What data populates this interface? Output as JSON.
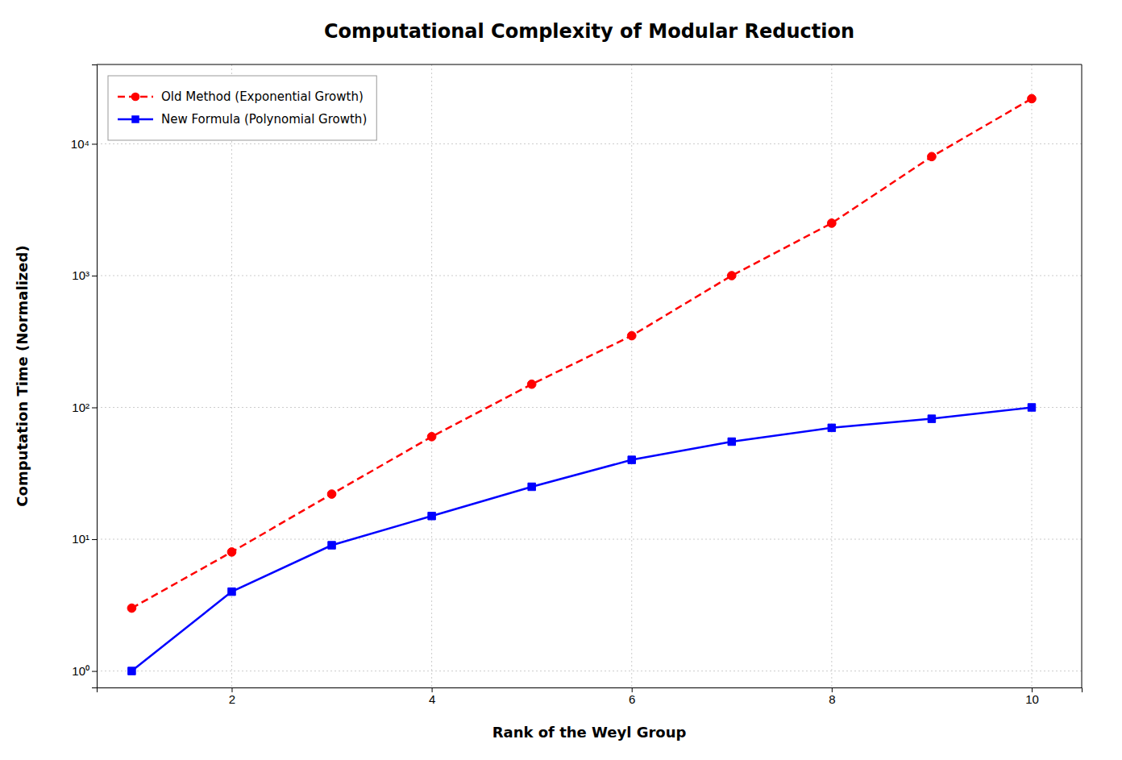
{
  "chart_data": {
    "type": "line",
    "title": "Computational Complexity of Modular Reduction",
    "x_label": "Rank of the Weyl Group",
    "y_label": "Computation Time (Normalized)",
    "x": [
      1,
      2,
      3,
      4,
      5,
      6,
      7,
      8,
      9,
      10
    ],
    "series": [
      {
        "name": "Old Method (Exponential Growth)",
        "color": "#ff0000",
        "marker": "circle",
        "line_style": "dashed",
        "values": [
          3.0,
          8.0,
          22.0,
          60.0,
          150.0,
          350.0,
          1000.0,
          2500.0,
          8000.0,
          22000.0
        ]
      },
      {
        "name": "New Formula (Polynomial Growth)",
        "color": "#0000ff",
        "marker": "square",
        "line_style": "solid",
        "values": [
          1.0,
          4.0,
          9.0,
          15.0,
          25.0,
          40.0,
          55.0,
          70.0,
          82.0,
          100.0
        ]
      }
    ],
    "xlim": [
      0.65,
      10.5
    ],
    "xticks": [
      2,
      4,
      6,
      8,
      10
    ],
    "ylim": [
      0.75,
      40000
    ],
    "yticks": [
      {
        "value": 1,
        "label": "10⁰"
      },
      {
        "value": 10,
        "label": "10¹"
      },
      {
        "value": 100,
        "label": "10²"
      },
      {
        "value": 1000,
        "label": "10³"
      },
      {
        "value": 10000,
        "label": "10⁴"
      }
    ],
    "log": "y",
    "grid": true,
    "legend": "upper left"
  }
}
